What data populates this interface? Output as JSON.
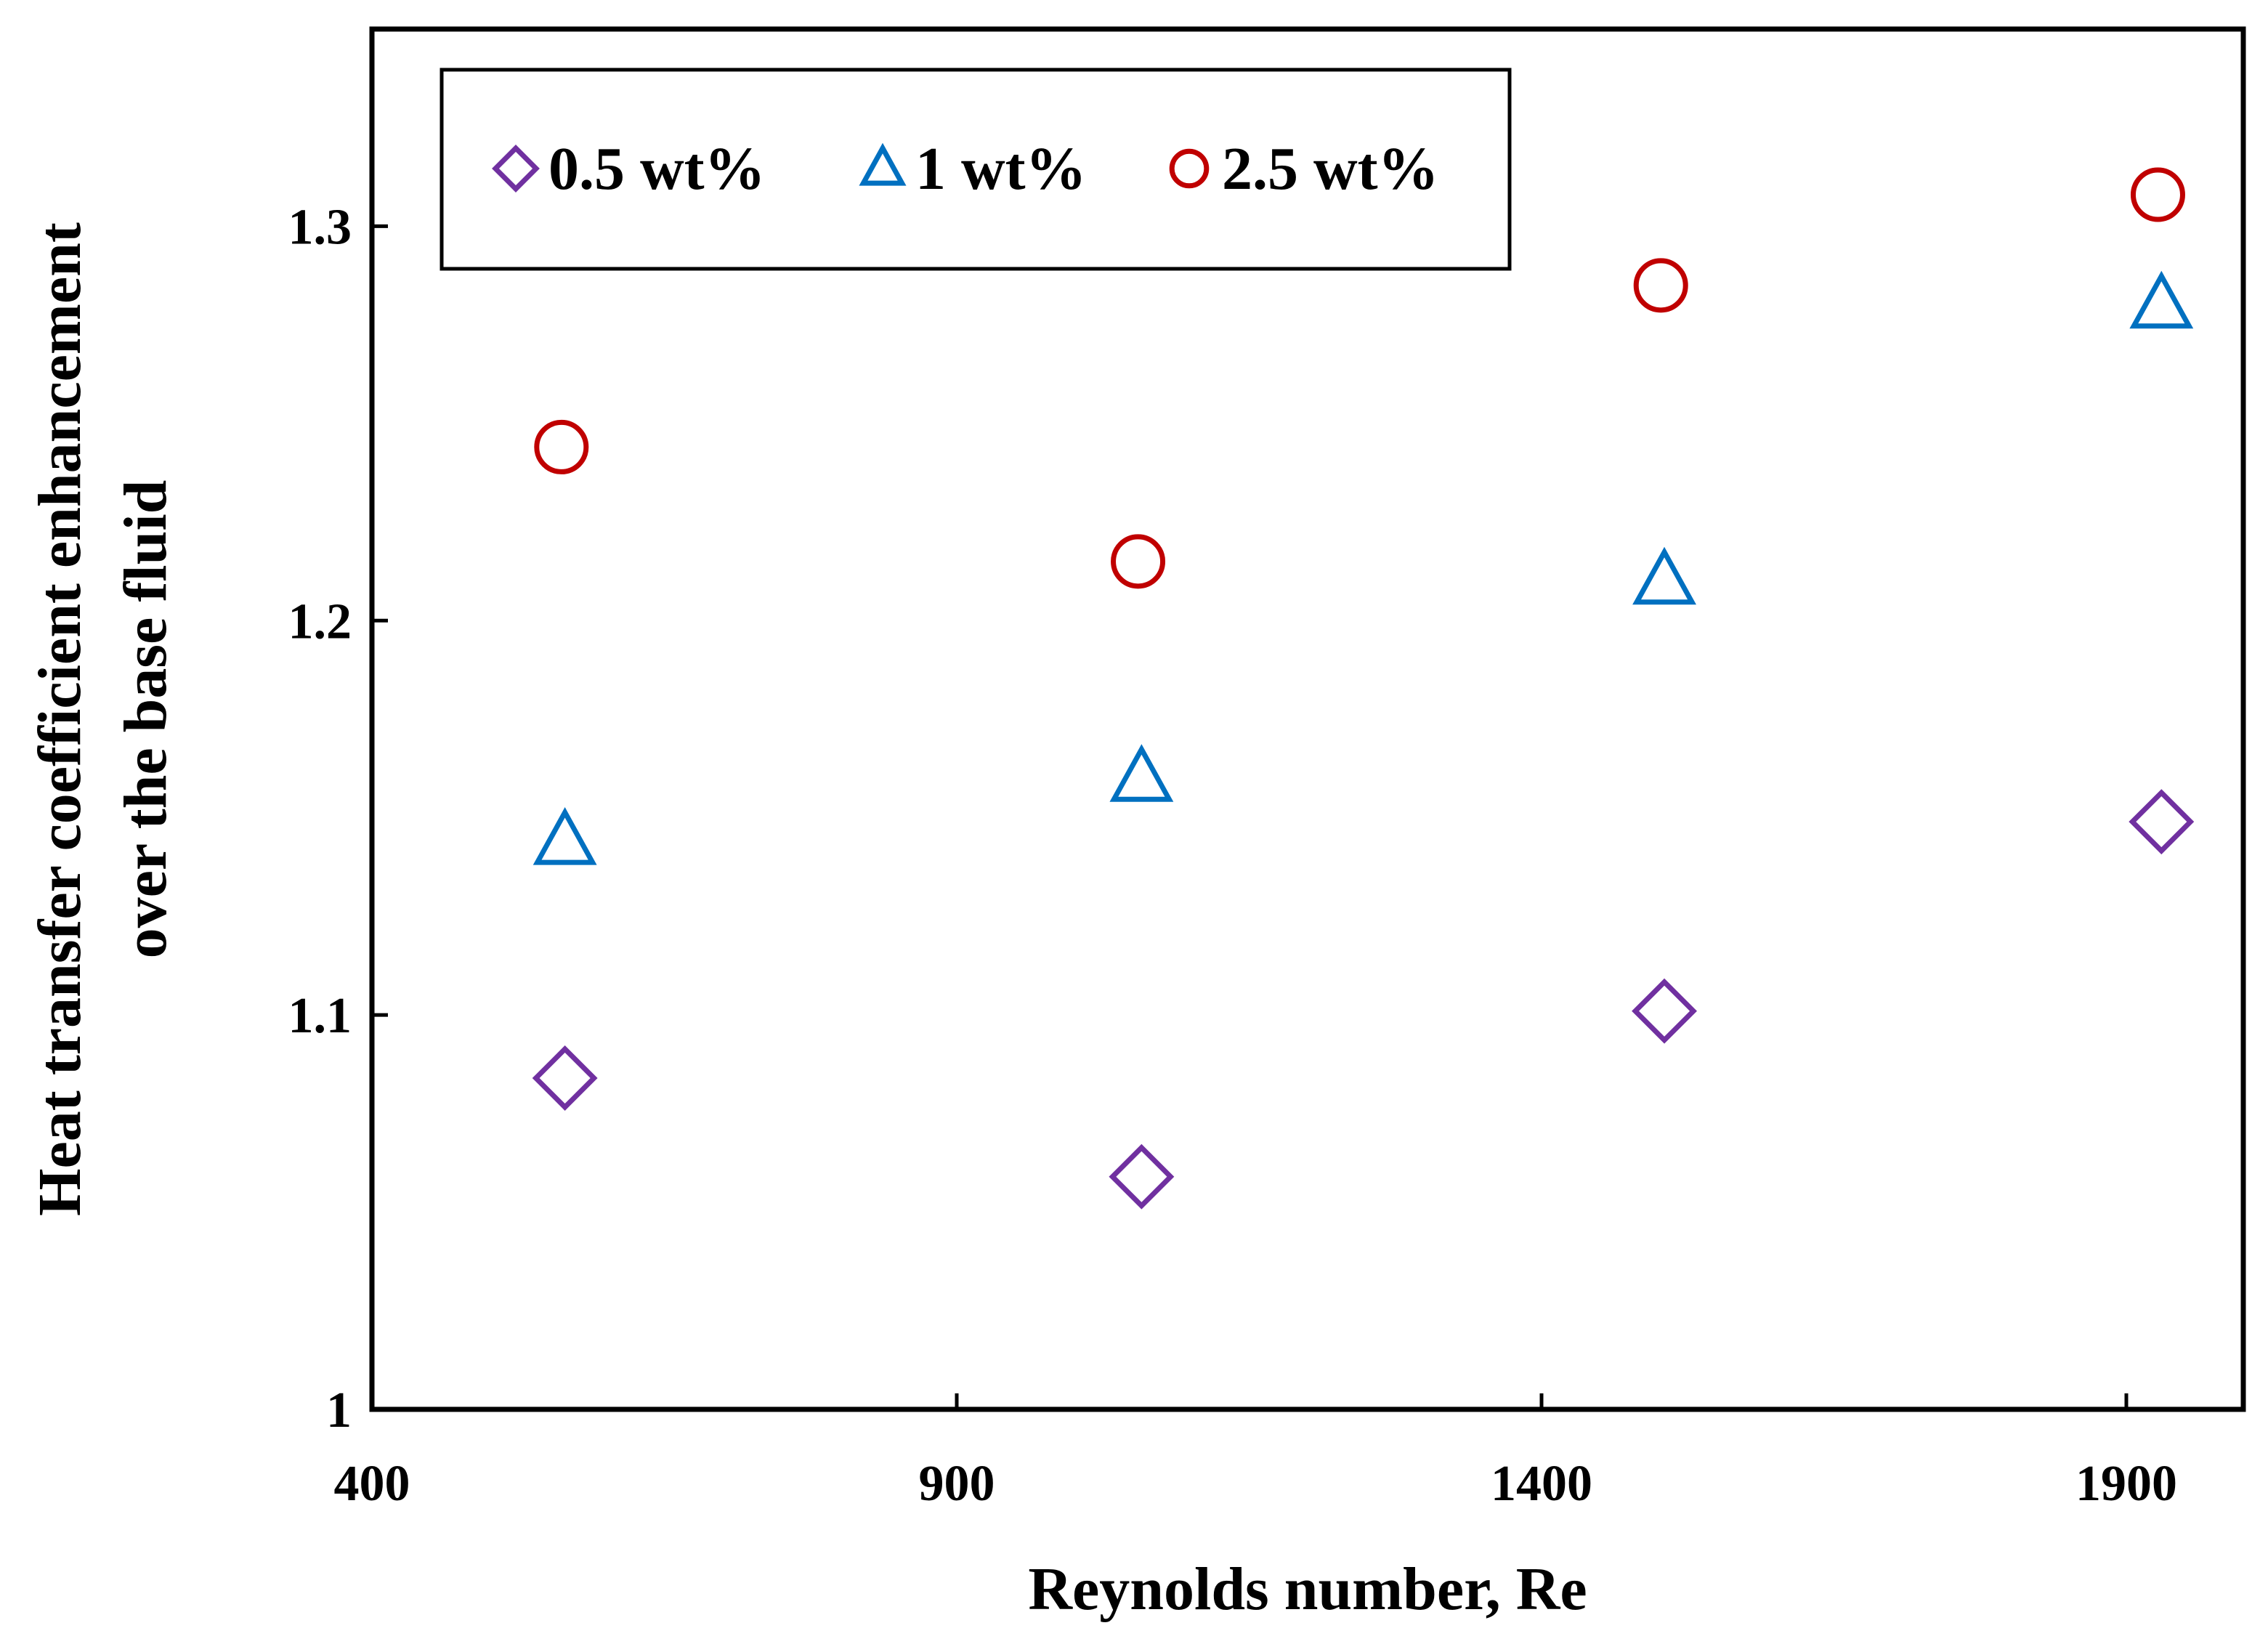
{
  "chart_data": {
    "type": "scatter",
    "xlabel": "Reynolds number, Re",
    "ylabel_lines": [
      "Heat transfer coefficient enhancement",
      "over the base fluid"
    ],
    "xlim": [
      400,
      2000
    ],
    "ylim": [
      1.0,
      1.35
    ],
    "xticks": [
      400,
      900,
      1400,
      1900
    ],
    "yticks": [
      1,
      1.1,
      1.2,
      1.3
    ],
    "xtick_labels": [
      "400",
      "900",
      "1400",
      "1900"
    ],
    "ytick_labels": [
      "1",
      "1.1",
      "1.2",
      "1.3"
    ],
    "grid": false,
    "legend_position": "top-left",
    "series": [
      {
        "name": "0.5 wt%",
        "marker": "diamond",
        "color": "#7030A0",
        "x": [
          565,
          1058,
          1505,
          1930
        ],
        "y": [
          1.084,
          1.059,
          1.101,
          1.149
        ]
      },
      {
        "name": "1 wt%",
        "marker": "triangle",
        "color": "#0070C0",
        "x": [
          565,
          1058,
          1505,
          1930
        ],
        "y": [
          1.144,
          1.16,
          1.21,
          1.28
        ]
      },
      {
        "name": "2.5 wt%",
        "marker": "circle",
        "color": "#C00000",
        "x": [
          562,
          1055,
          1502,
          1927
        ],
        "y": [
          1.244,
          1.215,
          1.285,
          1.308
        ]
      }
    ]
  }
}
